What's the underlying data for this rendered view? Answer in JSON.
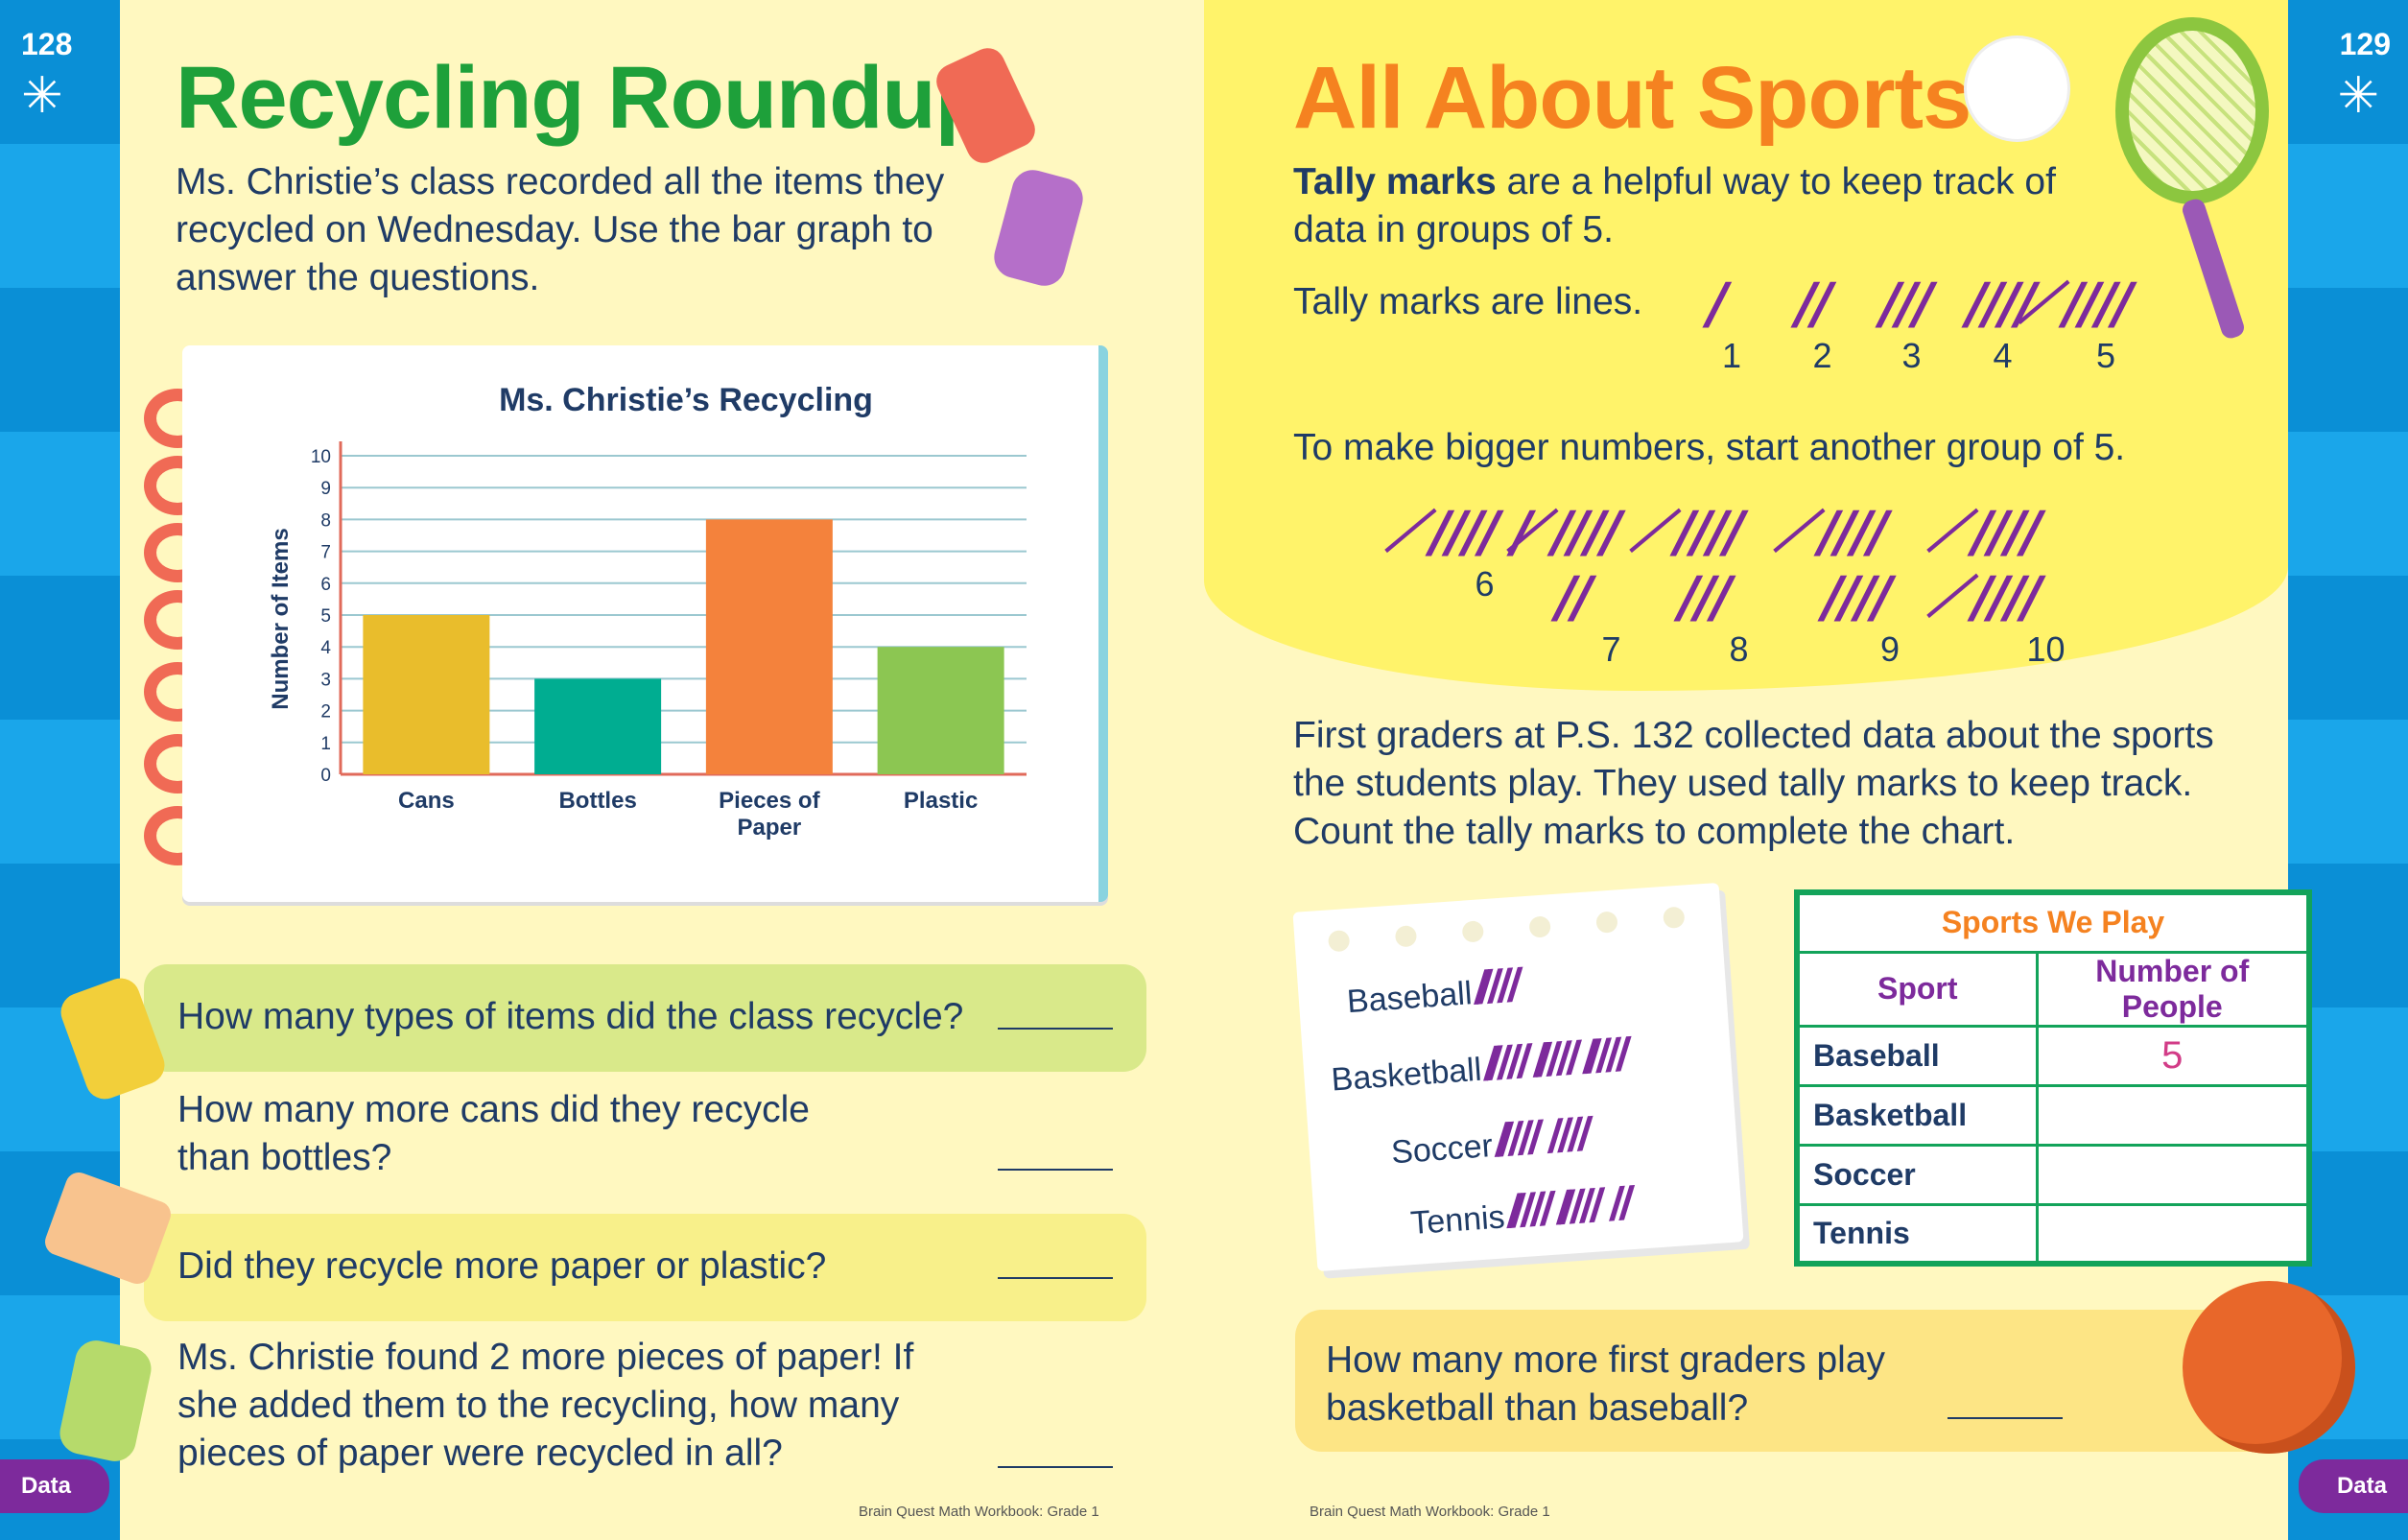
{
  "left_page": {
    "page_number": "128",
    "title": "Recycling Roundup",
    "intro": "Ms. Christie’s class recorded all the items they recycled on Wednesday. Use the bar graph to answer the questions.",
    "questions": [
      "How many types of items did the class recycle?",
      "How many more cans did they recycle than bottles?",
      "Did they recycle more paper or plastic?",
      "Ms. Christie found 2 more pieces of paper! If she added them to the recycling, how many pieces of paper were recycled in all?"
    ],
    "tab": "Data",
    "footer": "Brain Quest Math Workbook: Grade 1"
  },
  "right_page": {
    "page_number": "129",
    "title": "All About Sports",
    "intro_bold": "Tally marks",
    "intro_rest": " are a helpful way to keep track of data in groups of 5.",
    "lines_text": "Tally marks are lines.",
    "tally_examples": [
      {
        "marks": "/",
        "num": "1"
      },
      {
        "marks": "//",
        "num": "2"
      },
      {
        "marks": "///",
        "num": "3"
      },
      {
        "marks": "////",
        "num": "4"
      },
      {
        "marks": "̸////",
        "num": "5"
      }
    ],
    "bigger_text": "To make bigger numbers, start another group of 5.",
    "bigger_examples": [
      {
        "marks": "̸//// /",
        "num": "6"
      },
      {
        "marks": "̸//// //",
        "num": "7"
      },
      {
        "marks": "̸//// ///",
        "num": "8"
      },
      {
        "marks": "̸//// ////",
        "num": "9"
      },
      {
        "marks": "̸//// ̸////",
        "num": "10"
      }
    ],
    "data_text": "First graders at P.S. 132 collected data about the sports the students play. They used tally marks to keep track. Count the tally marks to complete the chart.",
    "notepad": [
      {
        "sport": "Baseball",
        "tally": "̸////"
      },
      {
        "sport": "Basketball",
        "tally": "̸//// ̸//// ̸////"
      },
      {
        "sport": "Soccer",
        "tally": "̸//// ////"
      },
      {
        "sport": "Tennis",
        "tally": "̸//// ̸//// //"
      }
    ],
    "table": {
      "title": "Sports We Play",
      "headers": [
        "Sport",
        "Number of People"
      ],
      "rows": [
        {
          "sport": "Baseball",
          "count": "5"
        },
        {
          "sport": "Basketball",
          "count": ""
        },
        {
          "sport": "Soccer",
          "count": ""
        },
        {
          "sport": "Tennis",
          "count": ""
        }
      ]
    },
    "question": "How many more first graders play basketball than baseball?",
    "tab": "Data",
    "footer": "Brain Quest Math Workbook: Grade 1"
  },
  "colors": {
    "title_green": "#1ea03a",
    "title_orange": "#f58220",
    "tally_purple": "#7d2a9c",
    "table_green": "#13a35a",
    "cans": "#e9bd2c",
    "bottles": "#00ad91",
    "paper": "#f4823c",
    "plastic": "#8cc652"
  },
  "chart_data": {
    "type": "bar",
    "title": "Ms. Christie’s Recycling",
    "categories": [
      "Cans",
      "Bottles",
      "Pieces of Paper",
      "Plastic"
    ],
    "values": [
      5,
      3,
      8,
      4
    ],
    "ylabel": "Number of Items",
    "xlabel": "",
    "ylim": [
      0,
      10
    ],
    "yticks": [
      "0",
      "1",
      "2",
      "3",
      "4",
      "5",
      "6",
      "7",
      "8",
      "9",
      "10"
    ],
    "grid": true
  }
}
